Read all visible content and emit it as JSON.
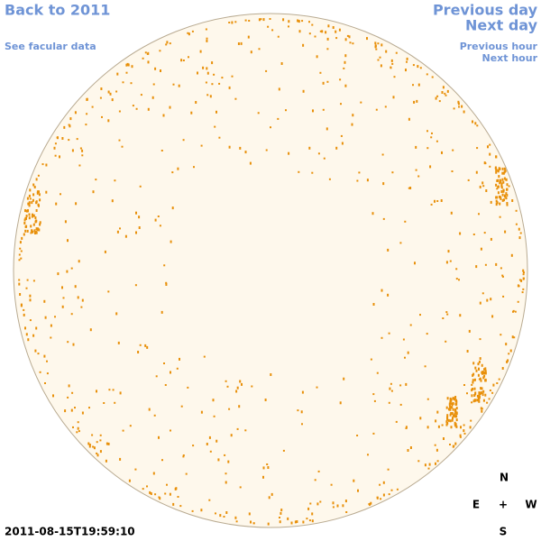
{
  "nav": {
    "back": "Back to 2011",
    "facular": "See facular data",
    "previous_day": "Previous day",
    "next_day": "Next day",
    "previous_hour": "Previous hour",
    "next_hour": "Next hour"
  },
  "timestamp": "2011-08-15T19:59:10",
  "compass": {
    "north": "N",
    "east": "E",
    "center": "+",
    "west": "W",
    "south": "S"
  }
}
